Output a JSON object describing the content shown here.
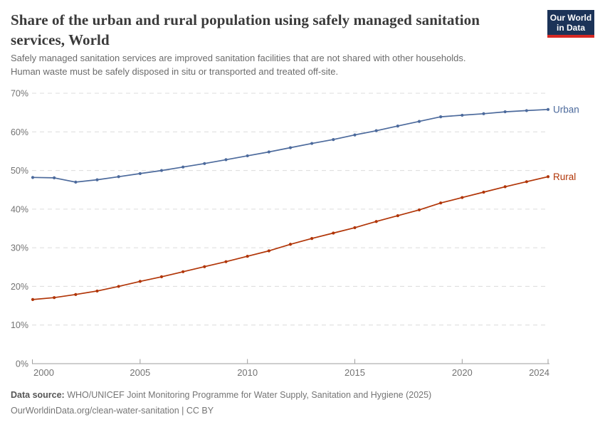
{
  "header": {
    "title": "Share of the urban and rural population using safely managed sanitation services, World",
    "title_lines": [
      "Share of the urban and rural population using safely managed sanitation",
      "services, World"
    ],
    "subtitle_lines": [
      "Safely managed sanitation services are improved sanitation facilities that are not shared with other households.",
      "Human waste must be safely disposed in situ or transported and treated off-site."
    ],
    "logo": {
      "line1": "Our World",
      "line2": "in Data",
      "bg_color": "#1c3358",
      "accent_color": "#d72823"
    }
  },
  "chart_data": {
    "type": "line",
    "title": "Share of the urban and rural population using safely managed sanitation services, World",
    "xlabel": "",
    "ylabel": "",
    "x": [
      2000,
      2001,
      2002,
      2003,
      2004,
      2005,
      2006,
      2007,
      2008,
      2009,
      2010,
      2011,
      2012,
      2013,
      2014,
      2015,
      2016,
      2017,
      2018,
      2019,
      2020,
      2021,
      2022,
      2023,
      2024
    ],
    "series": [
      {
        "name": "Urban",
        "color": "#4c6a9c",
        "values": [
          48.2,
          48.1,
          47.0,
          47.6,
          48.4,
          49.2,
          50.0,
          50.9,
          51.8,
          52.8,
          53.8,
          54.8,
          55.9,
          57.0,
          58.0,
          59.2,
          60.3,
          61.5,
          62.7,
          63.9,
          64.3,
          64.7,
          65.2,
          65.5,
          65.8
        ]
      },
      {
        "name": "Rural",
        "color": "#b13507",
        "values": [
          16.6,
          17.1,
          17.9,
          18.8,
          20.0,
          21.3,
          22.5,
          23.8,
          25.1,
          26.4,
          27.8,
          29.2,
          30.9,
          32.4,
          33.8,
          35.2,
          36.8,
          38.3,
          39.8,
          41.6,
          43.0,
          44.4,
          45.8,
          47.1,
          48.4
        ]
      }
    ],
    "ylim": [
      0,
      70
    ],
    "yticks": [
      0,
      10,
      20,
      30,
      40,
      50,
      60,
      70
    ],
    "ytick_suffix": "%",
    "xticks": [
      2000,
      2005,
      2010,
      2015,
      2020,
      2024
    ],
    "grid": "horizontal-dashed",
    "legend_position": "end-of-line-labels",
    "grid_color": "#dcdcdc",
    "axis_color": "#9e9e9e",
    "axis_text_color": "#737373"
  },
  "footer": {
    "source_label": "Data source:",
    "source_text": " WHO/UNICEF Joint Monitoring Programme for Water Supply, Sanitation and Hygiene (2025)",
    "link_line": "OurWorldinData.org/clean-water-sanitation | CC BY"
  }
}
